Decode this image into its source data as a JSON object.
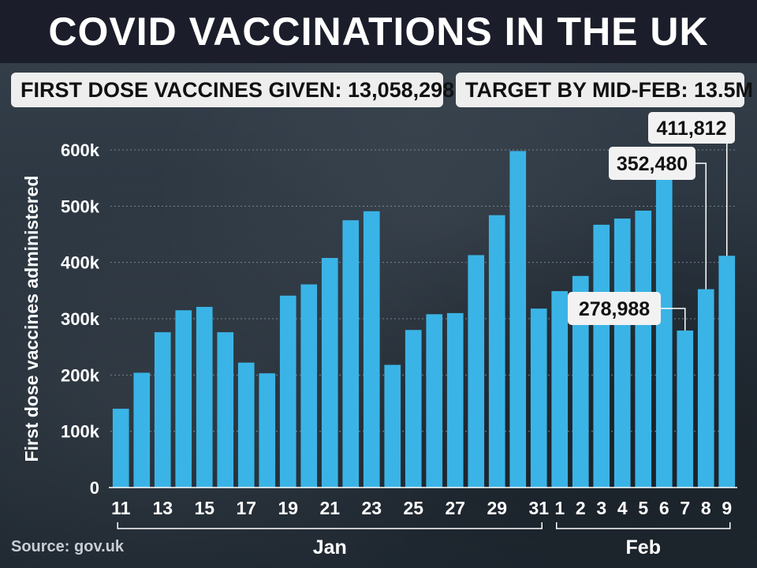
{
  "header": {
    "title": "COVID VACCINATIONS IN THE UK",
    "first_dose_label": "FIRST DOSE VACCINES GIVEN: 13,058,298",
    "target_label": "TARGET BY MID-FEB: 13.5M"
  },
  "source": "Source: gov.uk",
  "colors": {
    "bar": "#3ab4e6",
    "background": "#2a3440",
    "title_bar": "#1b1e2a",
    "text": "#ffffff"
  },
  "chart_data": {
    "type": "bar",
    "ylabel": "First dose vaccines administered",
    "ylim": [
      0,
      600000
    ],
    "yticks": [
      {
        "value": 0,
        "label": "0"
      },
      {
        "value": 100000,
        "label": "100k"
      },
      {
        "value": 200000,
        "label": "200k"
      },
      {
        "value": 300000,
        "label": "300k"
      },
      {
        "value": 400000,
        "label": "400k"
      },
      {
        "value": 500000,
        "label": "500k"
      },
      {
        "value": 600000,
        "label": "600k"
      }
    ],
    "grid": true,
    "days": [
      "11",
      "12",
      "13",
      "14",
      "15",
      "16",
      "17",
      "18",
      "19",
      "20",
      "21",
      "22",
      "23",
      "24",
      "25",
      "26",
      "27",
      "28",
      "29",
      "30",
      "31",
      "1",
      "2",
      "3",
      "4",
      "5",
      "6",
      "7",
      "8",
      "9"
    ],
    "values": [
      140000,
      204000,
      276000,
      315000,
      321000,
      276000,
      222000,
      203000,
      341000,
      361000,
      408000,
      475000,
      491000,
      218000,
      280000,
      308000,
      310000,
      413000,
      484000,
      598000,
      318000,
      349000,
      376000,
      467000,
      478000,
      492000,
      549000,
      278988,
      352480,
      411812
    ],
    "tick_labels": [
      {
        "index": 0,
        "label": "11"
      },
      {
        "index": 2,
        "label": "13"
      },
      {
        "index": 4,
        "label": "15"
      },
      {
        "index": 6,
        "label": "17"
      },
      {
        "index": 8,
        "label": "19"
      },
      {
        "index": 10,
        "label": "21"
      },
      {
        "index": 12,
        "label": "23"
      },
      {
        "index": 14,
        "label": "25"
      },
      {
        "index": 16,
        "label": "27"
      },
      {
        "index": 18,
        "label": "29"
      },
      {
        "index": 20,
        "label": "31"
      },
      {
        "index": 21,
        "label": "1"
      },
      {
        "index": 22,
        "label": "2"
      },
      {
        "index": 23,
        "label": "3"
      },
      {
        "index": 24,
        "label": "4"
      },
      {
        "index": 25,
        "label": "5"
      },
      {
        "index": 26,
        "label": "6"
      },
      {
        "index": 27,
        "label": "7"
      },
      {
        "index": 28,
        "label": "8"
      },
      {
        "index": 29,
        "label": "9"
      }
    ],
    "month_groups": [
      {
        "label": "Jan",
        "start": 0,
        "end": 20
      },
      {
        "label": "Feb",
        "start": 21,
        "end": 29
      }
    ],
    "callouts": [
      {
        "index": 27,
        "label": "278,988"
      },
      {
        "index": 28,
        "label": "352,480"
      },
      {
        "index": 29,
        "label": "411,812"
      }
    ]
  }
}
